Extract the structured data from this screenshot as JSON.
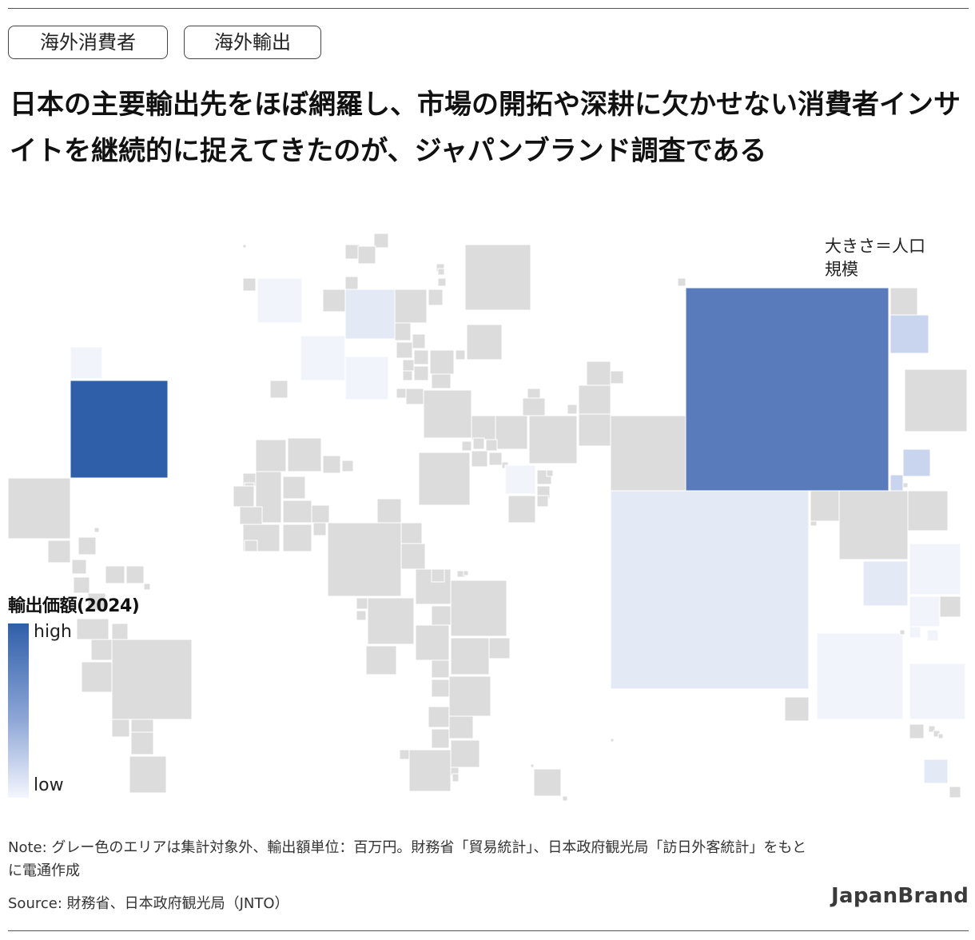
{
  "tags": [
    "海外消費者",
    "海外輸出"
  ],
  "headline": "日本の主要輸出先をほぼ網羅し、市場の開拓や深耕に欠かせない消費者インサイトを継続的に捉えてきたのが、ジャパンブランド調査である",
  "size_note": [
    "大きさ＝人口",
    "規模"
  ],
  "legend": {
    "title": "輸出価額(2024)",
    "high": "high",
    "low": "low"
  },
  "note": "Note: グレー色のエリアは集計対象外、輸出額単位：百万円。財務省「貿易統計」、日本政府観光局「訪日外客統計」をもとに電通作成",
  "source": "Source: 財務省、日本政府観光局（JNTO）",
  "brand": "JapanBrand",
  "colors": {
    "no_data": "#dcdcdc",
    "legend_high": "#2f5fa8",
    "legend_low": "#f4f6fd",
    "text": "#1a1a1a"
  },
  "map": {
    "description_key": "cartogram",
    "scale": {
      "size": "population",
      "color": "export_value_2024"
    }
  }
}
